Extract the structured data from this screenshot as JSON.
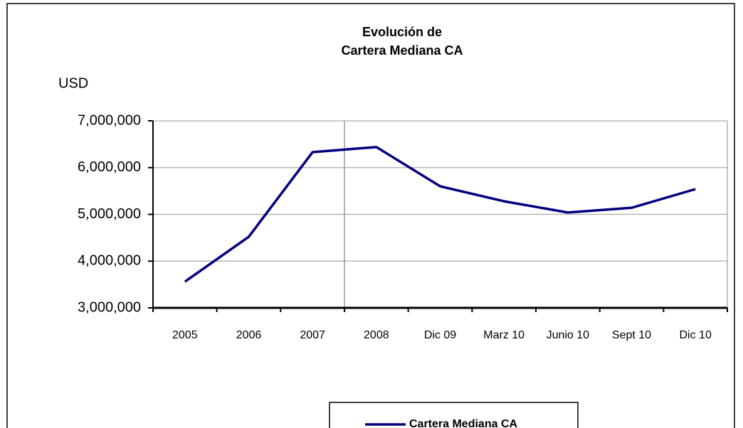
{
  "chart_data": {
    "type": "line",
    "title": [
      "Evolución de",
      "Cartera Mediana CA"
    ],
    "y_label": "USD",
    "categories": [
      "2005",
      "2006",
      "2007",
      "2008",
      "Dic 09",
      "Marz 10",
      "Junio 10",
      "Sept 10",
      "Dic 10"
    ],
    "series": [
      {
        "name": "Cartera Mediana CA",
        "color": "#000080",
        "values": [
          3560000,
          4520000,
          6330000,
          6440000,
          5600000,
          5280000,
          5040000,
          5140000,
          5540000
        ]
      }
    ],
    "ylim": [
      3000000,
      7000000
    ],
    "yticks": [
      {
        "value": 3000000,
        "label": "3,000,000"
      },
      {
        "value": 4000000,
        "label": "4,000,000"
      },
      {
        "value": 5000000,
        "label": "5,000,000"
      },
      {
        "value": 6000000,
        "label": "6,000,000"
      },
      {
        "value": 7000000,
        "label": "7,000,000"
      }
    ],
    "grid": true,
    "legend": "bottom"
  }
}
